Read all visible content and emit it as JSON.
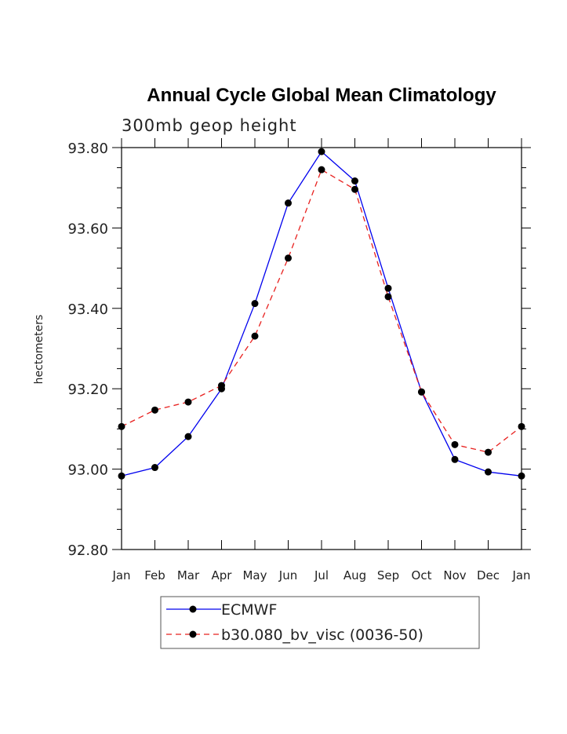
{
  "chart_data": {
    "type": "line",
    "title": "Annual Cycle Global Mean Climatology",
    "subtitle": "300mb geop height",
    "ylabel": "hectometers",
    "xlabel": "",
    "categories": [
      "Jan",
      "Feb",
      "Mar",
      "Apr",
      "May",
      "Jun",
      "Jul",
      "Aug",
      "Sep",
      "Oct",
      "Nov",
      "Dec",
      "Jan"
    ],
    "ylim": [
      92.8,
      93.8
    ],
    "yticks": [
      "93.80",
      "93.60",
      "93.40",
      "93.20",
      "93.00",
      "92.80"
    ],
    "grid": false,
    "legend_position": "bottom-center",
    "series": [
      {
        "name": "ECMWF",
        "color": "#0000ee",
        "line_style": "solid",
        "marker": "filled-circle",
        "values": [
          92.983,
          93.004,
          93.081,
          93.2,
          93.412,
          93.662,
          93.79,
          93.717,
          93.45,
          93.192,
          93.024,
          92.993,
          92.983
        ]
      },
      {
        "name": "b30.080_bv_visc (0036-50)",
        "color": "#e8201e",
        "line_style": "dashed",
        "marker": "filled-circle",
        "values": [
          93.106,
          93.147,
          93.167,
          93.208,
          93.331,
          93.525,
          93.745,
          93.696,
          93.429,
          93.192,
          93.061,
          93.042,
          93.106
        ]
      }
    ]
  }
}
